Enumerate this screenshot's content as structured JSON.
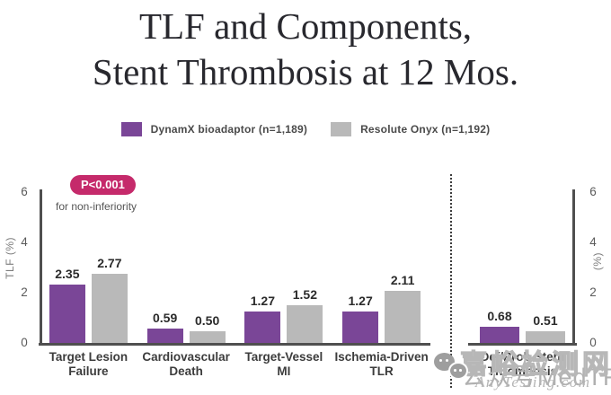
{
  "title": {
    "line1": "TLF and Components,",
    "line2": "Stent Thrombosis at 12 Mos."
  },
  "chart_data": {
    "type": "bar",
    "title": "TLF and Components, Stent Thrombosis at 12 Mos.",
    "ylim": [
      0,
      6
    ],
    "yticks": [
      0,
      2,
      4,
      6
    ],
    "ylabel_left": "TLF (%)",
    "ylabel_right": "(%)",
    "grid": false,
    "legend_position": "top",
    "series": [
      {
        "name": "DynamX bioadaptor",
        "n_label": "(n=1,189)",
        "color": "#7a4697"
      },
      {
        "name": "Resolute Onyx",
        "n_label": "(n=1,192)",
        "color": "#b9b9b9"
      }
    ],
    "groups": [
      {
        "panel": "left",
        "category": [
          "Target Lesion",
          "Failure"
        ],
        "values": [
          2.35,
          2.77
        ]
      },
      {
        "panel": "left",
        "category": [
          "Cardiovascular",
          "Death"
        ],
        "values": [
          0.59,
          0.5
        ]
      },
      {
        "panel": "left",
        "category": [
          "Target-Vessel",
          "MI"
        ],
        "values": [
          1.27,
          1.52
        ]
      },
      {
        "panel": "left",
        "category": [
          "Ischemia-Driven",
          "TLR"
        ],
        "values": [
          1.27,
          2.11
        ]
      },
      {
        "panel": "right",
        "category": [
          "Def/Prob Stent",
          "Thrombosis"
        ],
        "values": [
          0.68,
          0.51
        ]
      }
    ],
    "annotation": {
      "badge": "P<0.001",
      "note": "for non-inferiority"
    }
  },
  "watermark": {
    "site_name": "嘉峪检测网",
    "site_url": "AnyTesting.com",
    "wechat_account": "公众号MedTF",
    "wechat_icon": "wechat-icon"
  }
}
